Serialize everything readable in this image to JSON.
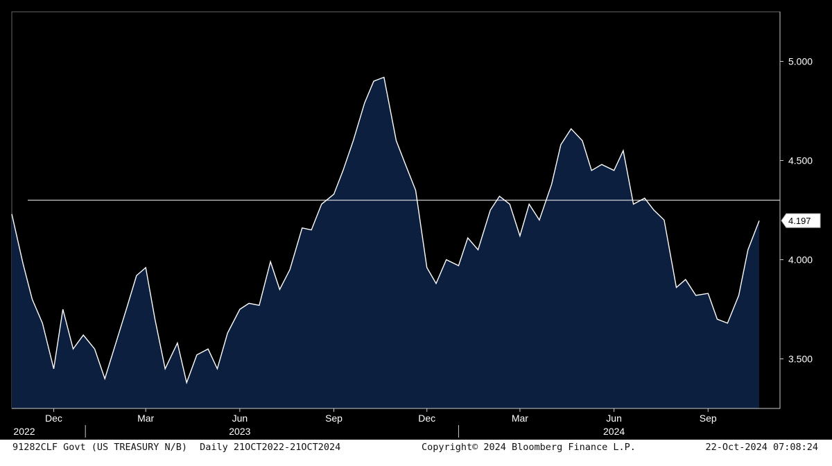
{
  "chart_data": {
    "type": "area",
    "ticker": "91282CLF Govt (US TREASURY N/B)",
    "period": "Daily 21OCT2022-21OCT2024",
    "copyright": "Copyright© 2024 Bloomberg Finance L.P.",
    "timestamp": "22-Oct-2024 07:08:24",
    "last_value_label": "4.197",
    "reference_line_value": 4.3,
    "ylim": [
      3.25,
      5.25
    ],
    "y_ticks": [
      {
        "value": 5.0,
        "label": "5.000"
      },
      {
        "value": 4.5,
        "label": "4.500"
      },
      {
        "value": 4.0,
        "label": "4.000"
      },
      {
        "value": 3.5,
        "label": "3.500"
      }
    ],
    "x_months": [
      {
        "date": "2022-12-01",
        "label": "Dec"
      },
      {
        "date": "2023-03-01",
        "label": "Mar"
      },
      {
        "date": "2023-06-01",
        "label": "Jun"
      },
      {
        "date": "2023-09-01",
        "label": "Sep"
      },
      {
        "date": "2023-12-01",
        "label": "Dec"
      },
      {
        "date": "2024-03-01",
        "label": "Mar"
      },
      {
        "date": "2024-06-01",
        "label": "Jun"
      },
      {
        "date": "2024-09-01",
        "label": "Sep"
      }
    ],
    "x_years": [
      {
        "date": "2022-11-01",
        "label": "2022"
      },
      {
        "date": "2023-06-01",
        "label": "2023"
      },
      {
        "date": "2024-06-01",
        "label": "2024"
      }
    ],
    "x_year_separators": [
      "2023-01-01",
      "2024-01-01"
    ],
    "x": [
      "2022-10-21",
      "2022-11-01",
      "2022-11-10",
      "2022-11-20",
      "2022-12-01",
      "2022-12-10",
      "2022-12-20",
      "2022-12-30",
      "2023-01-10",
      "2023-01-20",
      "2023-02-01",
      "2023-02-10",
      "2023-02-20",
      "2023-03-01",
      "2023-03-10",
      "2023-03-20",
      "2023-04-01",
      "2023-04-10",
      "2023-04-20",
      "2023-05-01",
      "2023-05-10",
      "2023-05-20",
      "2023-06-01",
      "2023-06-10",
      "2023-06-20",
      "2023-07-01",
      "2023-07-10",
      "2023-07-20",
      "2023-08-01",
      "2023-08-10",
      "2023-08-20",
      "2023-09-01",
      "2023-09-10",
      "2023-09-20",
      "2023-10-01",
      "2023-10-10",
      "2023-10-20",
      "2023-11-01",
      "2023-11-10",
      "2023-11-20",
      "2023-12-01",
      "2023-12-10",
      "2023-12-20",
      "2024-01-01",
      "2024-01-10",
      "2024-01-20",
      "2024-02-01",
      "2024-02-10",
      "2024-02-20",
      "2024-03-01",
      "2024-03-10",
      "2024-03-20",
      "2024-04-01",
      "2024-04-10",
      "2024-04-20",
      "2024-05-01",
      "2024-05-10",
      "2024-05-20",
      "2024-06-01",
      "2024-06-10",
      "2024-06-20",
      "2024-07-01",
      "2024-07-10",
      "2024-07-20",
      "2024-08-01",
      "2024-08-10",
      "2024-08-20",
      "2024-09-01",
      "2024-09-10",
      "2024-09-20",
      "2024-10-01",
      "2024-10-10",
      "2024-10-21"
    ],
    "y": [
      4.23,
      3.98,
      3.8,
      3.68,
      3.45,
      3.75,
      3.55,
      3.62,
      3.55,
      3.4,
      3.6,
      3.75,
      3.92,
      3.96,
      3.7,
      3.45,
      3.58,
      3.38,
      3.52,
      3.55,
      3.45,
      3.63,
      3.75,
      3.78,
      3.77,
      3.99,
      3.85,
      3.95,
      4.16,
      4.15,
      4.28,
      4.33,
      4.45,
      4.6,
      4.79,
      4.9,
      4.92,
      4.6,
      4.48,
      4.35,
      3.96,
      3.88,
      4.0,
      3.97,
      4.11,
      4.05,
      4.25,
      4.32,
      4.28,
      4.12,
      4.28,
      4.2,
      4.38,
      4.58,
      4.66,
      4.6,
      4.45,
      4.48,
      4.45,
      4.55,
      4.28,
      4.31,
      4.25,
      4.2,
      3.86,
      3.9,
      3.82,
      3.83,
      3.7,
      3.68,
      3.82,
      4.05,
      4.197
    ]
  }
}
